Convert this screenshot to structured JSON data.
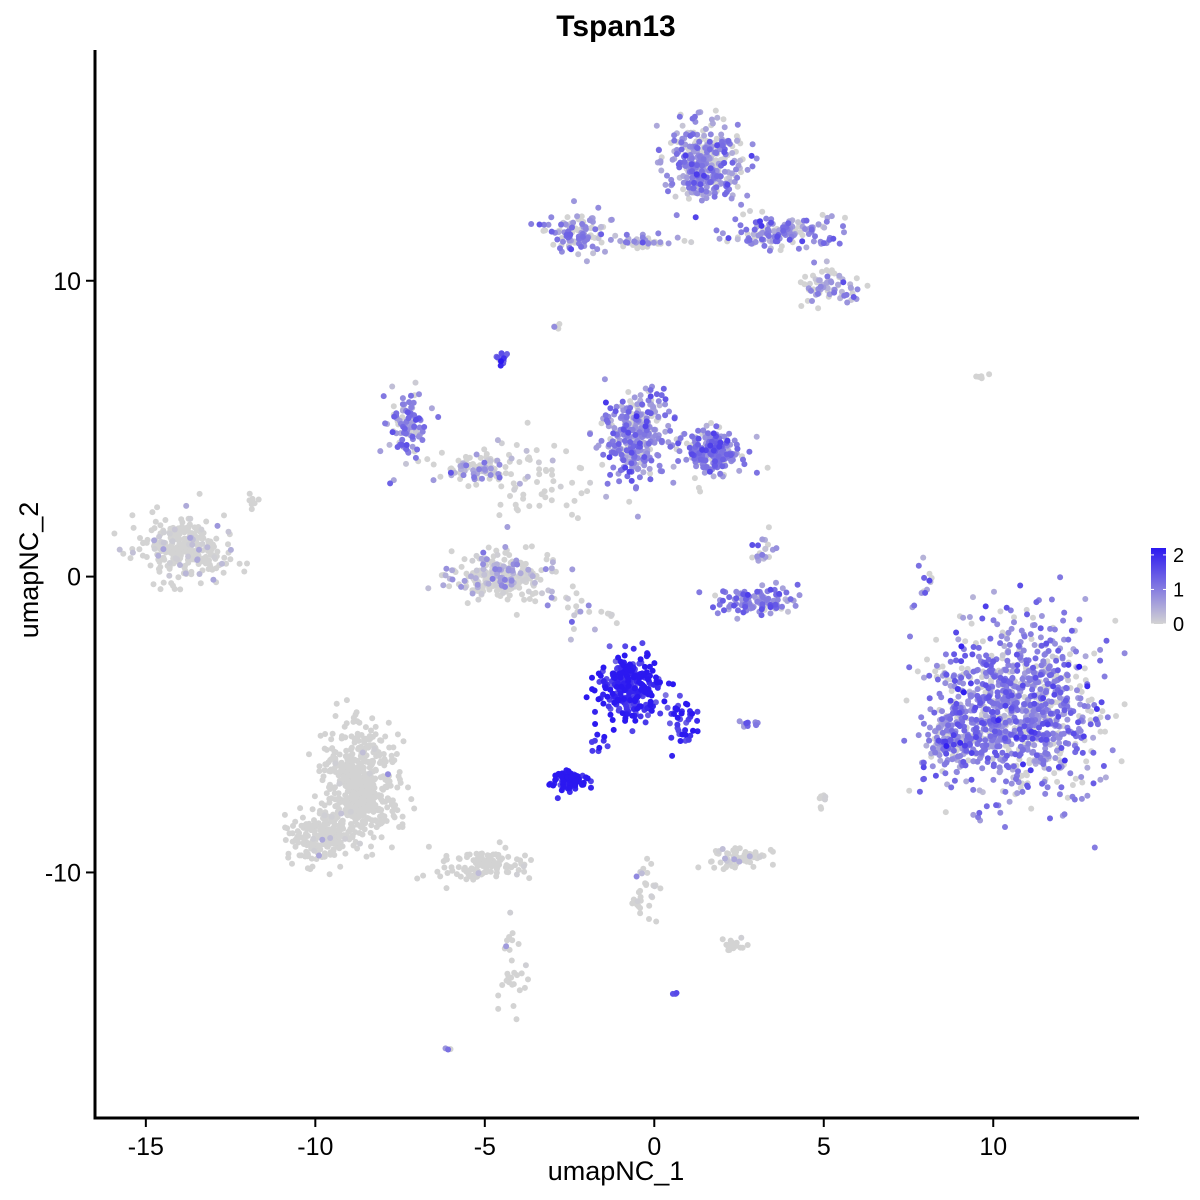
{
  "chart_data": {
    "type": "scatter",
    "title": "Tspan13",
    "xlabel": "umapNC_1",
    "ylabel": "umapNC_2",
    "xlim": [
      -16.5,
      14.3
    ],
    "ylim": [
      -18.3,
      17.8
    ],
    "x_ticks": [
      -15,
      -10,
      -5,
      0,
      5,
      10
    ],
    "x_tick_labels": [
      "-15",
      "-10",
      "-5",
      "0",
      "5",
      "10"
    ],
    "y_ticks": [
      -10,
      0,
      10
    ],
    "y_tick_labels": [
      "-10",
      "0",
      "10"
    ],
    "grid": false,
    "legend": {
      "position": "right",
      "min": 0,
      "max": 2.2,
      "ticks": [
        0,
        1,
        2
      ],
      "tick_labels": [
        "0",
        "1",
        "2"
      ],
      "low_color": "#d3d3d3",
      "high_color": "#2b18f0"
    },
    "clusters": [
      {
        "cx": -13.8,
        "cy": 1.0,
        "rx": 1.2,
        "ry": 1.0,
        "n": 280,
        "expr": 0.12,
        "pexp": 0.12
      },
      {
        "cx": -8.7,
        "cy": -7.0,
        "rx": 1.0,
        "ry": 1.7,
        "n": 520,
        "expr": 0.03,
        "pexp": 0.02
      },
      {
        "cx": -9.8,
        "cy": -8.8,
        "rx": 0.9,
        "ry": 0.8,
        "n": 200,
        "expr": 0.03,
        "pexp": 0.02
      },
      {
        "cx": -5.0,
        "cy": -9.8,
        "rx": 1.2,
        "ry": 0.45,
        "n": 110,
        "expr": 0.03,
        "pexp": 0.02
      },
      {
        "cx": -4.2,
        "cy": -13.3,
        "rx": 0.35,
        "ry": 1.5,
        "n": 30,
        "expr": 0.2,
        "pexp": 0.2
      },
      {
        "cx": -7.3,
        "cy": 5.2,
        "rx": 0.55,
        "ry": 0.9,
        "n": 110,
        "expr": 0.9,
        "pexp": 0.75
      },
      {
        "cx": -5.3,
        "cy": 3.6,
        "rx": 1.0,
        "ry": 0.4,
        "n": 70,
        "expr": 0.6,
        "pexp": 0.55
      },
      {
        "cx": -3.6,
        "cy": 3.2,
        "rx": 1.5,
        "ry": 1.4,
        "n": 70,
        "expr": 0.25,
        "pexp": 0.2
      },
      {
        "cx": -4.5,
        "cy": 7.3,
        "rx": 0.2,
        "ry": 0.25,
        "n": 15,
        "expr": 1.5,
        "pexp": 0.9
      },
      {
        "cx": -4.5,
        "cy": 0.0,
        "rx": 1.3,
        "ry": 0.7,
        "n": 260,
        "expr": 0.4,
        "pexp": 0.35
      },
      {
        "cx": -0.6,
        "cy": 4.8,
        "rx": 0.9,
        "ry": 1.3,
        "n": 330,
        "expr": 0.9,
        "pexp": 0.8
      },
      {
        "cx": 1.7,
        "cy": 4.2,
        "rx": 0.8,
        "ry": 0.7,
        "n": 210,
        "expr": 1.0,
        "pexp": 0.85
      },
      {
        "cx": 3.0,
        "cy": -0.8,
        "rx": 1.1,
        "ry": 0.4,
        "n": 110,
        "expr": 1.0,
        "pexp": 0.85
      },
      {
        "cx": 3.2,
        "cy": 0.8,
        "rx": 0.3,
        "ry": 0.6,
        "n": 20,
        "expr": 0.8,
        "pexp": 0.7
      },
      {
        "cx": 1.5,
        "cy": 14.0,
        "rx": 1.0,
        "ry": 1.2,
        "n": 360,
        "expr": 0.85,
        "pexp": 0.75
      },
      {
        "cx": 3.8,
        "cy": 11.6,
        "rx": 1.4,
        "ry": 0.5,
        "n": 160,
        "expr": 0.85,
        "pexp": 0.75
      },
      {
        "cx": 5.1,
        "cy": 9.8,
        "rx": 0.7,
        "ry": 0.6,
        "n": 70,
        "expr": 0.7,
        "pexp": 0.6
      },
      {
        "cx": -2.3,
        "cy": 11.6,
        "rx": 0.9,
        "ry": 0.6,
        "n": 110,
        "expr": 0.8,
        "pexp": 0.7
      },
      {
        "cx": -0.3,
        "cy": 11.3,
        "rx": 1.1,
        "ry": 0.25,
        "n": 40,
        "expr": 0.7,
        "pexp": 0.6
      },
      {
        "cx": -0.7,
        "cy": -3.7,
        "rx": 0.8,
        "ry": 1.0,
        "n": 270,
        "expr": 2.0,
        "pexp": 1.0
      },
      {
        "cx": 0.8,
        "cy": -4.8,
        "rx": 0.4,
        "ry": 0.9,
        "n": 40,
        "expr": 1.9,
        "pexp": 1.0
      },
      {
        "cx": -2.5,
        "cy": -6.9,
        "rx": 0.45,
        "ry": 0.3,
        "n": 70,
        "expr": 2.2,
        "pexp": 1.0
      },
      {
        "cx": -1.7,
        "cy": -5.6,
        "rx": 0.2,
        "ry": 0.6,
        "n": 10,
        "expr": 2.1,
        "pexp": 1.0
      },
      {
        "cx": 10.6,
        "cy": -4.5,
        "rx": 2.2,
        "ry": 2.6,
        "n": 1100,
        "expr": 1.0,
        "pexp": 0.75
      },
      {
        "cx": 8.8,
        "cy": -5.4,
        "rx": 0.7,
        "ry": 0.8,
        "n": 130,
        "expr": 0.9,
        "pexp": 0.7
      },
      {
        "cx": 2.4,
        "cy": -9.5,
        "rx": 0.9,
        "ry": 0.3,
        "n": 70,
        "expr": 0.15,
        "pexp": 0.15
      },
      {
        "cx": 2.3,
        "cy": -12.5,
        "rx": 0.4,
        "ry": 0.2,
        "n": 20,
        "expr": 0.05,
        "pexp": 0.05
      },
      {
        "cx": -0.3,
        "cy": -10.7,
        "rx": 0.35,
        "ry": 1.1,
        "n": 30,
        "expr": 0.1,
        "pexp": 0.1
      },
      {
        "cx": 8.0,
        "cy": -0.3,
        "rx": 0.25,
        "ry": 0.9,
        "n": 12,
        "expr": 0.8,
        "pexp": 0.7
      },
      {
        "cx": 2.8,
        "cy": -5.0,
        "rx": 0.3,
        "ry": 0.1,
        "n": 10,
        "expr": 1.0,
        "pexp": 0.8
      },
      {
        "cx": 5.0,
        "cy": -7.5,
        "rx": 0.15,
        "ry": 0.35,
        "n": 8,
        "expr": 0.1,
        "pexp": 0.1
      },
      {
        "cx": -11.8,
        "cy": 2.5,
        "rx": 0.25,
        "ry": 0.25,
        "n": 8,
        "expr": 0.05,
        "pexp": 0.05
      },
      {
        "cx": -2.9,
        "cy": 8.5,
        "rx": 0.15,
        "ry": 0.15,
        "n": 6,
        "expr": 0.7,
        "pexp": 0.6
      },
      {
        "cx": 9.5,
        "cy": 6.7,
        "rx": 0.3,
        "ry": 0.1,
        "n": 5,
        "expr": 0.6,
        "pexp": 0.5
      },
      {
        "cx": 0.6,
        "cy": -14.2,
        "rx": 0.1,
        "ry": 0.1,
        "n": 3,
        "expr": 1.2,
        "pexp": 0.9
      },
      {
        "cx": -6.1,
        "cy": -16.0,
        "rx": 0.15,
        "ry": 0.1,
        "n": 3,
        "expr": 0.9,
        "pexp": 0.8
      },
      {
        "cx": -2.5,
        "cy": -1.0,
        "rx": 0.6,
        "ry": 0.8,
        "n": 15,
        "expr": 0.4,
        "pexp": 0.4
      },
      {
        "cx": -1.5,
        "cy": -1.2,
        "rx": 0.4,
        "ry": 0.3,
        "n": 8,
        "expr": 0.3,
        "pexp": 0.3
      }
    ]
  }
}
